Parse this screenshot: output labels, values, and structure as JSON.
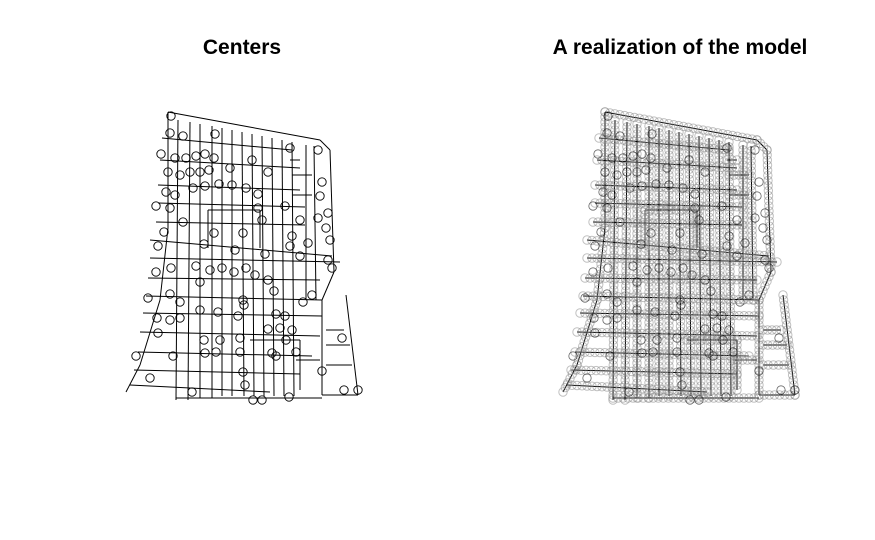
{
  "chart_data": [
    {
      "type": "scatter",
      "title": "Centers",
      "point_style": "open-circle",
      "background": "street network lines",
      "axes": "none"
    },
    {
      "type": "scatter",
      "title": "A realization of the model",
      "point_style": "open-circle-dense",
      "background": "street network lines",
      "axes": "none"
    }
  ],
  "colors": {
    "line": "#000000",
    "halo": "#8c8c8c",
    "background": "#ffffff"
  }
}
